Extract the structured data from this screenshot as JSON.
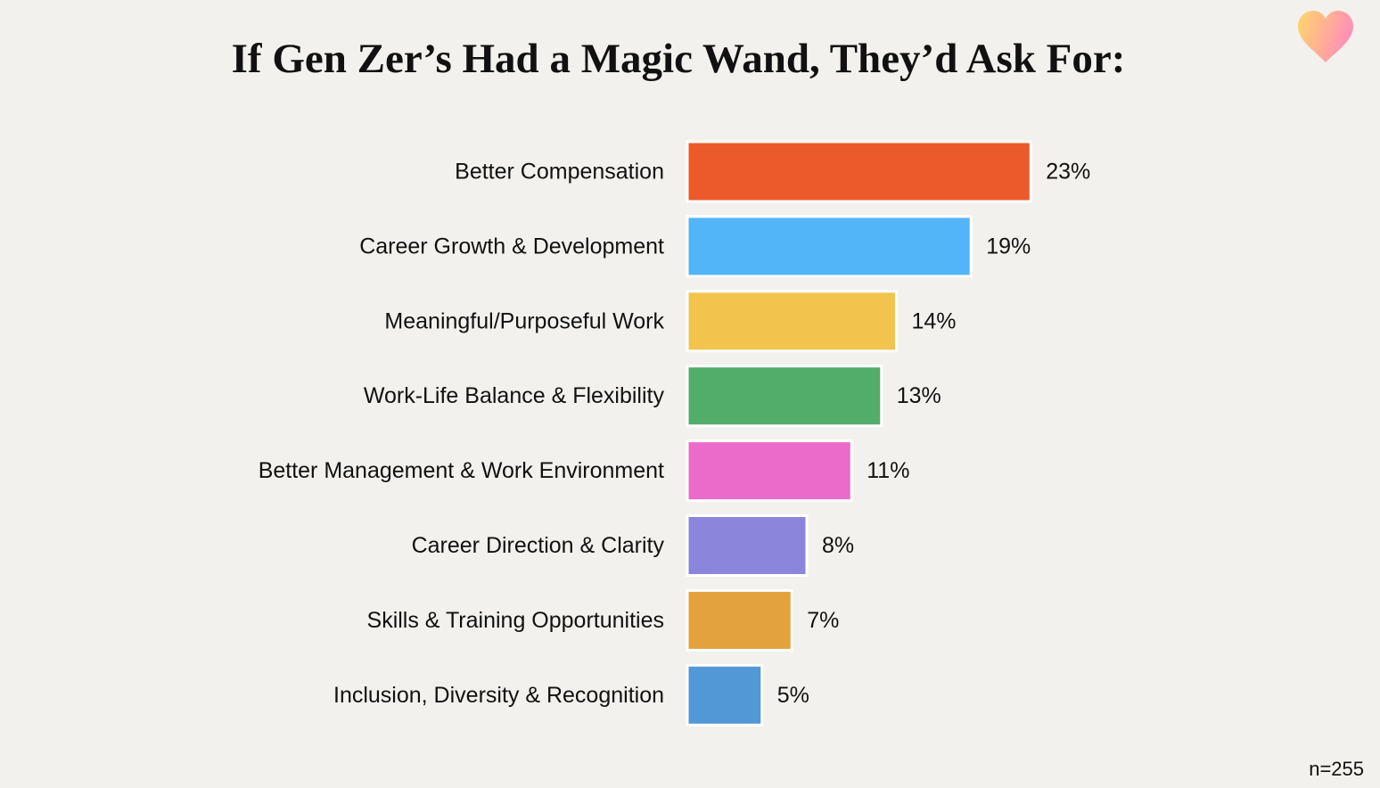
{
  "title": "If Gen Zer’s Had a Magic Wand, They’d Ask For:",
  "footnote": "n=255",
  "logo": {
    "icon": "heart-icon",
    "gradient": [
      "#ffd76a",
      "#ff8fb8"
    ]
  },
  "chart_data": {
    "type": "bar",
    "orientation": "horizontal",
    "title": "If Gen Zer’s Had a Magic Wand, They’d Ask For:",
    "categories": [
      "Better Compensation",
      "Career Growth & Development",
      "Meaningful/Purposeful Work",
      "Work-Life Balance & Flexibility",
      "Better Management & Work Environment",
      "Career Direction & Clarity",
      "Skills & Training Opportunities",
      "Inclusion, Diversity & Recognition"
    ],
    "values": [
      23,
      19,
      14,
      13,
      11,
      8,
      7,
      5
    ],
    "value_labels": [
      "23%",
      "19%",
      "14%",
      "13%",
      "11%",
      "8%",
      "7%",
      "5%"
    ],
    "colors": [
      "#eb5a2a",
      "#52b5f8",
      "#f2c44e",
      "#53ad6a",
      "#eb6bca",
      "#8b86dc",
      "#e4a23e",
      "#5297d6"
    ],
    "unit": "%",
    "n": 255,
    "grid": false,
    "legend": "none"
  }
}
